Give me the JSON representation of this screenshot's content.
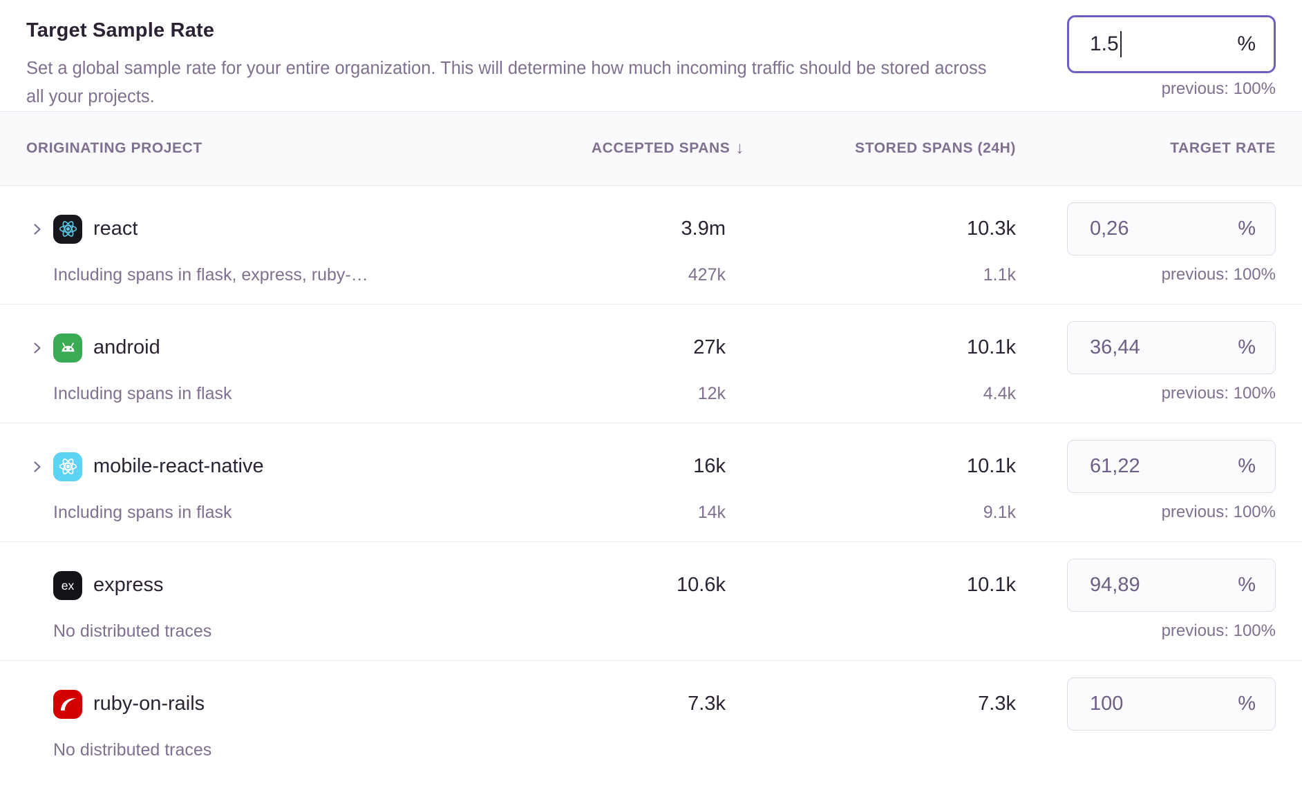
{
  "header": {
    "title": "Target Sample Rate",
    "description": "Set a global sample rate for your entire organization. This will determine how much incoming traffic should be stored across all your projects.",
    "input": {
      "value": "1.5",
      "unit": "%",
      "previous": "previous: 100%"
    }
  },
  "table": {
    "columns": {
      "project": "ORIGINATING PROJECT",
      "accepted": "ACCEPTED SPANS",
      "sort_icon": "↓",
      "stored": "STORED SPANS (24H)",
      "rate": "TARGET RATE"
    },
    "rows": [
      {
        "project": "react",
        "platform": "react",
        "expandable": true,
        "accepted": "3.9m",
        "stored": "10.3k",
        "rate": "0,26",
        "unit": "%",
        "previous": "previous: 100%",
        "sub_label": "Including spans in flask, express, ruby-…",
        "sub_accepted": "427k",
        "sub_stored": "1.1k"
      },
      {
        "project": "android",
        "platform": "android",
        "expandable": true,
        "accepted": "27k",
        "stored": "10.1k",
        "rate": "36,44",
        "unit": "%",
        "previous": "previous: 100%",
        "sub_label": "Including spans in flask",
        "sub_accepted": "12k",
        "sub_stored": "4.4k"
      },
      {
        "project": "mobile-react-native",
        "platform": "react-native",
        "expandable": true,
        "accepted": "16k",
        "stored": "10.1k",
        "rate": "61,22",
        "unit": "%",
        "previous": "previous: 100%",
        "sub_label": "Including spans in flask",
        "sub_accepted": "14k",
        "sub_stored": "9.1k"
      },
      {
        "project": "express",
        "platform": "express",
        "expandable": false,
        "accepted": "10.6k",
        "stored": "10.1k",
        "rate": "94,89",
        "unit": "%",
        "previous": "previous: 100%",
        "sub_label": "No distributed traces",
        "sub_accepted": "",
        "sub_stored": ""
      },
      {
        "project": "ruby-on-rails",
        "platform": "rails",
        "expandable": false,
        "accepted": "7.3k",
        "stored": "7.3k",
        "rate": "100",
        "unit": "%",
        "previous": "",
        "sub_label": "No distributed traces",
        "sub_accepted": "",
        "sub_stored": ""
      }
    ]
  },
  "colors": {
    "accent": "#6c5fc7",
    "text": "#2b2233",
    "muted": "#80708f",
    "header_bg": "#faf9fb",
    "divider": "#ece8f1",
    "row_input_bg": "#fbfafc",
    "row_input_border": "#e2dde8",
    "react_icon_bg": "#16161d",
    "react_icon_fg": "#5ac8e3",
    "android_icon_bg": "#3aaa55",
    "react_native_icon_bg": "#5cd3f4",
    "express_icon_bg": "#141317",
    "rails_icon_bg": "#d20000"
  }
}
